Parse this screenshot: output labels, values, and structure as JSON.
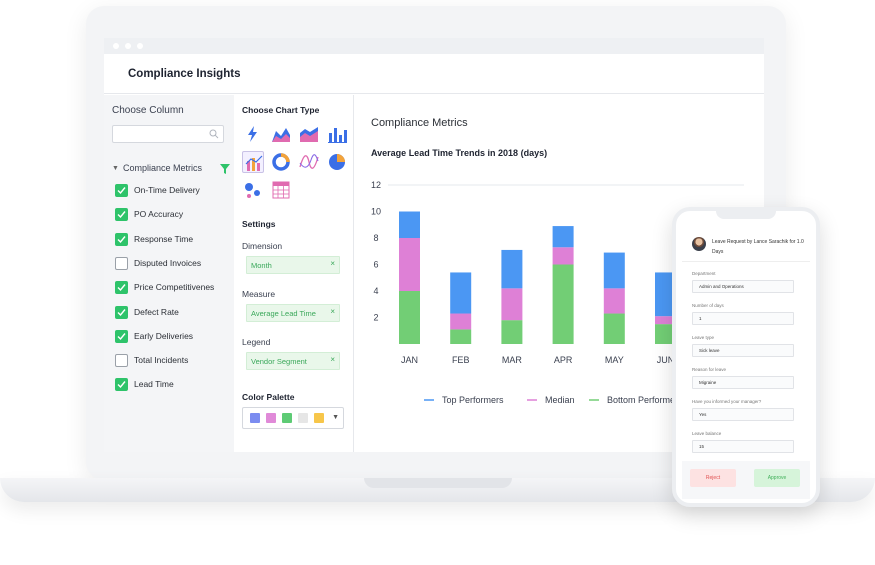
{
  "app": {
    "title": "Compliance Insights"
  },
  "columns_panel": {
    "heading": "Choose Column",
    "search_placeholder": "",
    "group_label": "Compliance Metrics",
    "items": [
      {
        "label": "On-Time Delivery",
        "checked": true
      },
      {
        "label": "PO Accuracy",
        "checked": true
      },
      {
        "label": "Response Time",
        "checked": true
      },
      {
        "label": "Disputed Invoices",
        "checked": false
      },
      {
        "label": "Price Competitivenes",
        "checked": true
      },
      {
        "label": "Defect Rate",
        "checked": true
      },
      {
        "label": "Early Deliveries",
        "checked": true
      },
      {
        "label": "Total Incidents",
        "checked": false
      },
      {
        "label": "Lead Time",
        "checked": true
      }
    ]
  },
  "type_panel": {
    "heading": "Choose Chart Type",
    "chart_types": [
      "lightning-chart-icon",
      "area-chart-icon",
      "stacked-area-icon",
      "bar-chart-icon",
      "combo-chart-icon",
      "donut-chart-icon",
      "spline-chart-icon",
      "pie-chart-icon",
      "bubble-chart-icon",
      "table-chart-icon"
    ],
    "selected_type": "combo-chart-icon",
    "settings_heading": "Settings",
    "dimension_label": "Dimension",
    "dimension_value": "Month",
    "measure_label": "Measure",
    "measure_value": "Average Lead Time",
    "legend_label": "Legend",
    "legend_value": "Vendor Segment",
    "remove_glyph": "×",
    "palette_label": "Color Palette",
    "palette_colors": [
      "#7b8cf0",
      "#e08ad8",
      "#5ecb75",
      "#e6e6e6",
      "#f7c64a"
    ]
  },
  "chart": {
    "section_title": "Compliance Metrics",
    "title": "Average Lead Time Trends in 2018 (days)"
  },
  "chart_data": {
    "type": "bar",
    "stacked": true,
    "title": "Average Lead Time Trends in 2018 (days)",
    "categories": [
      "JAN",
      "FEB",
      "MAR",
      "APR",
      "MAY",
      "JUN"
    ],
    "yticks": [
      2,
      4,
      6,
      8,
      10,
      12
    ],
    "ylim": [
      0,
      12
    ],
    "grid": false,
    "legend_position": "bottom",
    "series": [
      {
        "name": "Bottom Performers",
        "color": "#72ce75",
        "values": [
          4.0,
          1.1,
          1.8,
          6.0,
          2.3,
          1.5
        ]
      },
      {
        "name": "Median",
        "color": "#de80d6",
        "values": [
          4.0,
          1.2,
          2.4,
          1.3,
          1.9,
          0.6
        ]
      },
      {
        "name": "Top Performers",
        "color": "#4b97f3",
        "values": [
          2.0,
          3.1,
          2.9,
          1.6,
          2.7,
          3.3
        ]
      }
    ],
    "legend_order": [
      "Top Performers",
      "Median",
      "Bottom Performers"
    ]
  },
  "phone": {
    "request_title": "Leave Request by Lance Sarachik for 1.0 Days",
    "fields": [
      {
        "label": "Department",
        "value": "Admin and Operations"
      },
      {
        "label": "Number of days",
        "value": "1"
      },
      {
        "label": "Leave type",
        "value": "Sick leave"
      },
      {
        "label": "Reason for leave",
        "value": "Migraine"
      },
      {
        "label": "Have you informed your manager?",
        "value": "Yes"
      },
      {
        "label": "Leave balance",
        "value": "15"
      }
    ],
    "reject_label": "Reject",
    "approve_label": "Approve"
  }
}
